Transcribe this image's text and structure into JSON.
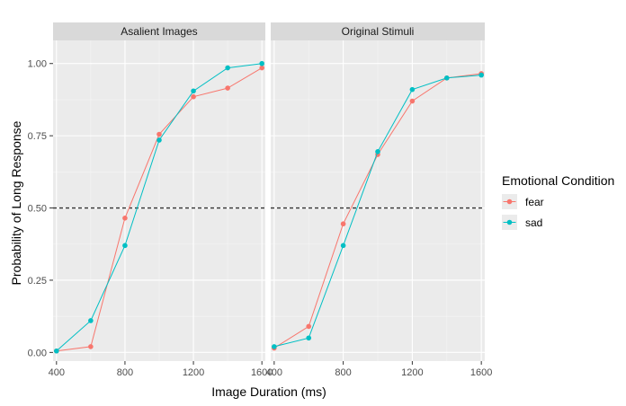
{
  "chart_data": {
    "type": "line",
    "xlabel": "Image Duration (ms)",
    "ylabel": "Probability of Long Response",
    "xlim": [
      380,
      1620
    ],
    "ylim": [
      -0.03,
      1.08
    ],
    "x_ticks": [
      400,
      800,
      1200,
      1600
    ],
    "x_tick_labels": [
      "400",
      "800",
      "1200",
      "1600"
    ],
    "y_ticks": [
      0,
      0.25,
      0.5,
      0.75,
      1
    ],
    "y_tick_labels": [
      "0.00",
      "0.25",
      "0.50",
      "0.75",
      "1.00"
    ],
    "reference_line": {
      "y": 0.5,
      "style": "dashed"
    },
    "legend": {
      "title": "Emotional Condition",
      "placement": "right",
      "entries": [
        {
          "name": "fear",
          "color": "#F8766D"
        },
        {
          "name": "sad",
          "color": "#00BFC4"
        }
      ]
    },
    "panels": [
      {
        "title": "Asalient Images",
        "series": [
          {
            "name": "fear",
            "color": "#F8766D",
            "x": [
              400,
              600,
              800,
              1000,
              1200,
              1400,
              1600
            ],
            "values": [
              0.005,
              0.02,
              0.465,
              0.755,
              0.885,
              0.915,
              0.985
            ]
          },
          {
            "name": "sad",
            "color": "#00BFC4",
            "x": [
              400,
              600,
              800,
              1000,
              1200,
              1400,
              1600
            ],
            "values": [
              0.005,
              0.11,
              0.37,
              0.735,
              0.905,
              0.985,
              1.0
            ]
          }
        ]
      },
      {
        "title": "Original Stimuli",
        "series": [
          {
            "name": "fear",
            "color": "#F8766D",
            "x": [
              400,
              600,
              800,
              1000,
              1200,
              1400,
              1600
            ],
            "values": [
              0.015,
              0.09,
              0.445,
              0.685,
              0.87,
              0.95,
              0.965
            ]
          },
          {
            "name": "sad",
            "color": "#00BFC4",
            "x": [
              400,
              600,
              800,
              1000,
              1200,
              1400,
              1600
            ],
            "values": [
              0.02,
              0.05,
              0.37,
              0.695,
              0.91,
              0.95,
              0.96
            ]
          }
        ]
      }
    ]
  }
}
